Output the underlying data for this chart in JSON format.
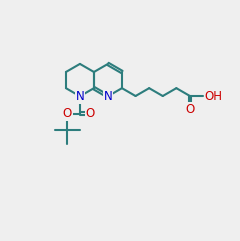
{
  "bg_color": "#efefef",
  "bond_color": "#2d7d7d",
  "N_color": "#0000cc",
  "O_color": "#cc0000",
  "lw": 1.5,
  "dbo": 0.055,
  "fs": 8.5
}
